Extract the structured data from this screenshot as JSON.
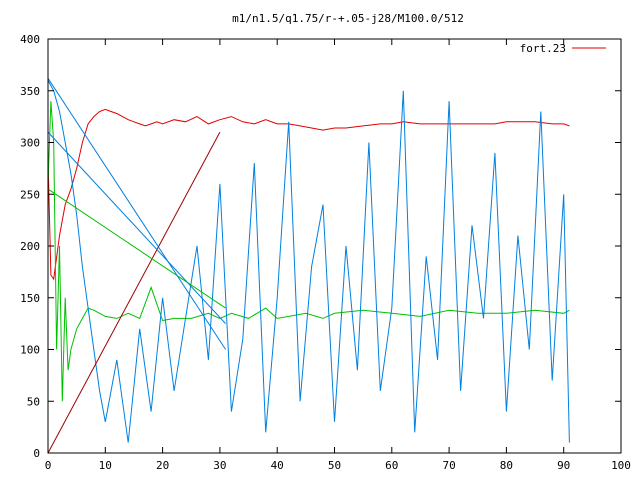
{
  "chart_data": {
    "type": "line",
    "title": "m1/n1.5/q1.75/r-+.05-j28/M100.0/512",
    "xlabel": "",
    "ylabel": "",
    "xlim": [
      0,
      100
    ],
    "ylim": [
      0,
      400
    ],
    "x_ticks": [
      0,
      10,
      20,
      30,
      40,
      50,
      60,
      70,
      80,
      90,
      100
    ],
    "y_ticks": [
      0,
      50,
      100,
      150,
      200,
      250,
      300,
      350,
      400
    ],
    "grid": false,
    "legend_position": "top-right",
    "colors": {
      "red": "#e00000",
      "green": "#00c000",
      "blue": "#0080e0",
      "darkred": "#a00000"
    },
    "series": [
      {
        "name": "fort.23",
        "color": "#e00000",
        "x": [
          0,
          0.5,
          1,
          2,
          3,
          4,
          5,
          6,
          7,
          8,
          9,
          10,
          11,
          12,
          13,
          14,
          15,
          16,
          17,
          18,
          19,
          20,
          22,
          24,
          26,
          28,
          30,
          32,
          34,
          36,
          38,
          40,
          42,
          44,
          46,
          48,
          50,
          52,
          55,
          58,
          60,
          62,
          65,
          68,
          70,
          72,
          75,
          78,
          80,
          82,
          85,
          88,
          90,
          91
        ],
        "y": [
          285,
          172,
          168,
          210,
          240,
          255,
          275,
          300,
          318,
          325,
          330,
          332,
          330,
          328,
          325,
          322,
          320,
          318,
          316,
          318,
          320,
          318,
          322,
          320,
          325,
          318,
          322,
          325,
          320,
          318,
          322,
          318,
          318,
          316,
          314,
          312,
          314,
          314,
          316,
          318,
          318,
          320,
          318,
          318,
          318,
          318,
          318,
          318,
          320,
          320,
          320,
          318,
          318,
          316
        ]
      },
      {
        "color": "#00c000",
        "x": [
          0,
          0.5,
          1,
          1.5,
          2,
          2.5,
          3,
          3.5,
          4,
          5,
          6,
          7,
          8,
          9,
          10,
          12,
          14,
          16,
          18,
          20,
          22,
          25,
          28,
          30,
          32,
          35,
          38,
          40,
          42,
          45,
          48,
          50,
          55,
          60,
          65,
          70,
          75,
          80,
          85,
          90,
          91
        ],
        "y": [
          260,
          340,
          300,
          100,
          200,
          50,
          150,
          80,
          100,
          120,
          130,
          140,
          138,
          135,
          132,
          130,
          135,
          130,
          160,
          128,
          130,
          130,
          135,
          130,
          135,
          130,
          140,
          130,
          132,
          135,
          130,
          135,
          138,
          135,
          132,
          138,
          135,
          135,
          138,
          135,
          138
        ]
      },
      {
        "color": "#0080e0",
        "x": [
          0,
          1,
          2,
          3,
          4,
          5,
          6,
          7,
          8,
          9,
          10,
          12,
          14,
          16,
          18,
          20,
          22,
          24,
          26,
          28,
          30,
          32,
          34,
          36,
          38,
          40,
          42,
          44,
          46,
          48,
          50,
          52,
          54,
          56,
          58,
          60,
          62,
          64,
          66,
          68,
          70,
          72,
          74,
          76,
          78,
          80,
          82,
          84,
          86,
          88,
          90,
          91
        ],
        "y": [
          360,
          350,
          330,
          300,
          270,
          230,
          180,
          140,
          100,
          60,
          30,
          90,
          10,
          120,
          40,
          150,
          60,
          130,
          200,
          90,
          260,
          40,
          110,
          280,
          20,
          150,
          320,
          50,
          180,
          240,
          30,
          200,
          80,
          300,
          60,
          140,
          350,
          20,
          190,
          90,
          340,
          60,
          220,
          130,
          290,
          40,
          210,
          100,
          330,
          70,
          250,
          10
        ]
      },
      {
        "color": "#a00000",
        "x": [
          0,
          30
        ],
        "y": [
          0,
          310
        ]
      },
      {
        "color": "#00c000",
        "x": [
          0,
          31
        ],
        "y": [
          255,
          140
        ]
      },
      {
        "color": "#0080e0",
        "x": [
          0,
          31
        ],
        "y": [
          362,
          100
        ]
      },
      {
        "color": "#0080e0",
        "x": [
          0,
          31
        ],
        "y": [
          310,
          125
        ]
      }
    ]
  }
}
